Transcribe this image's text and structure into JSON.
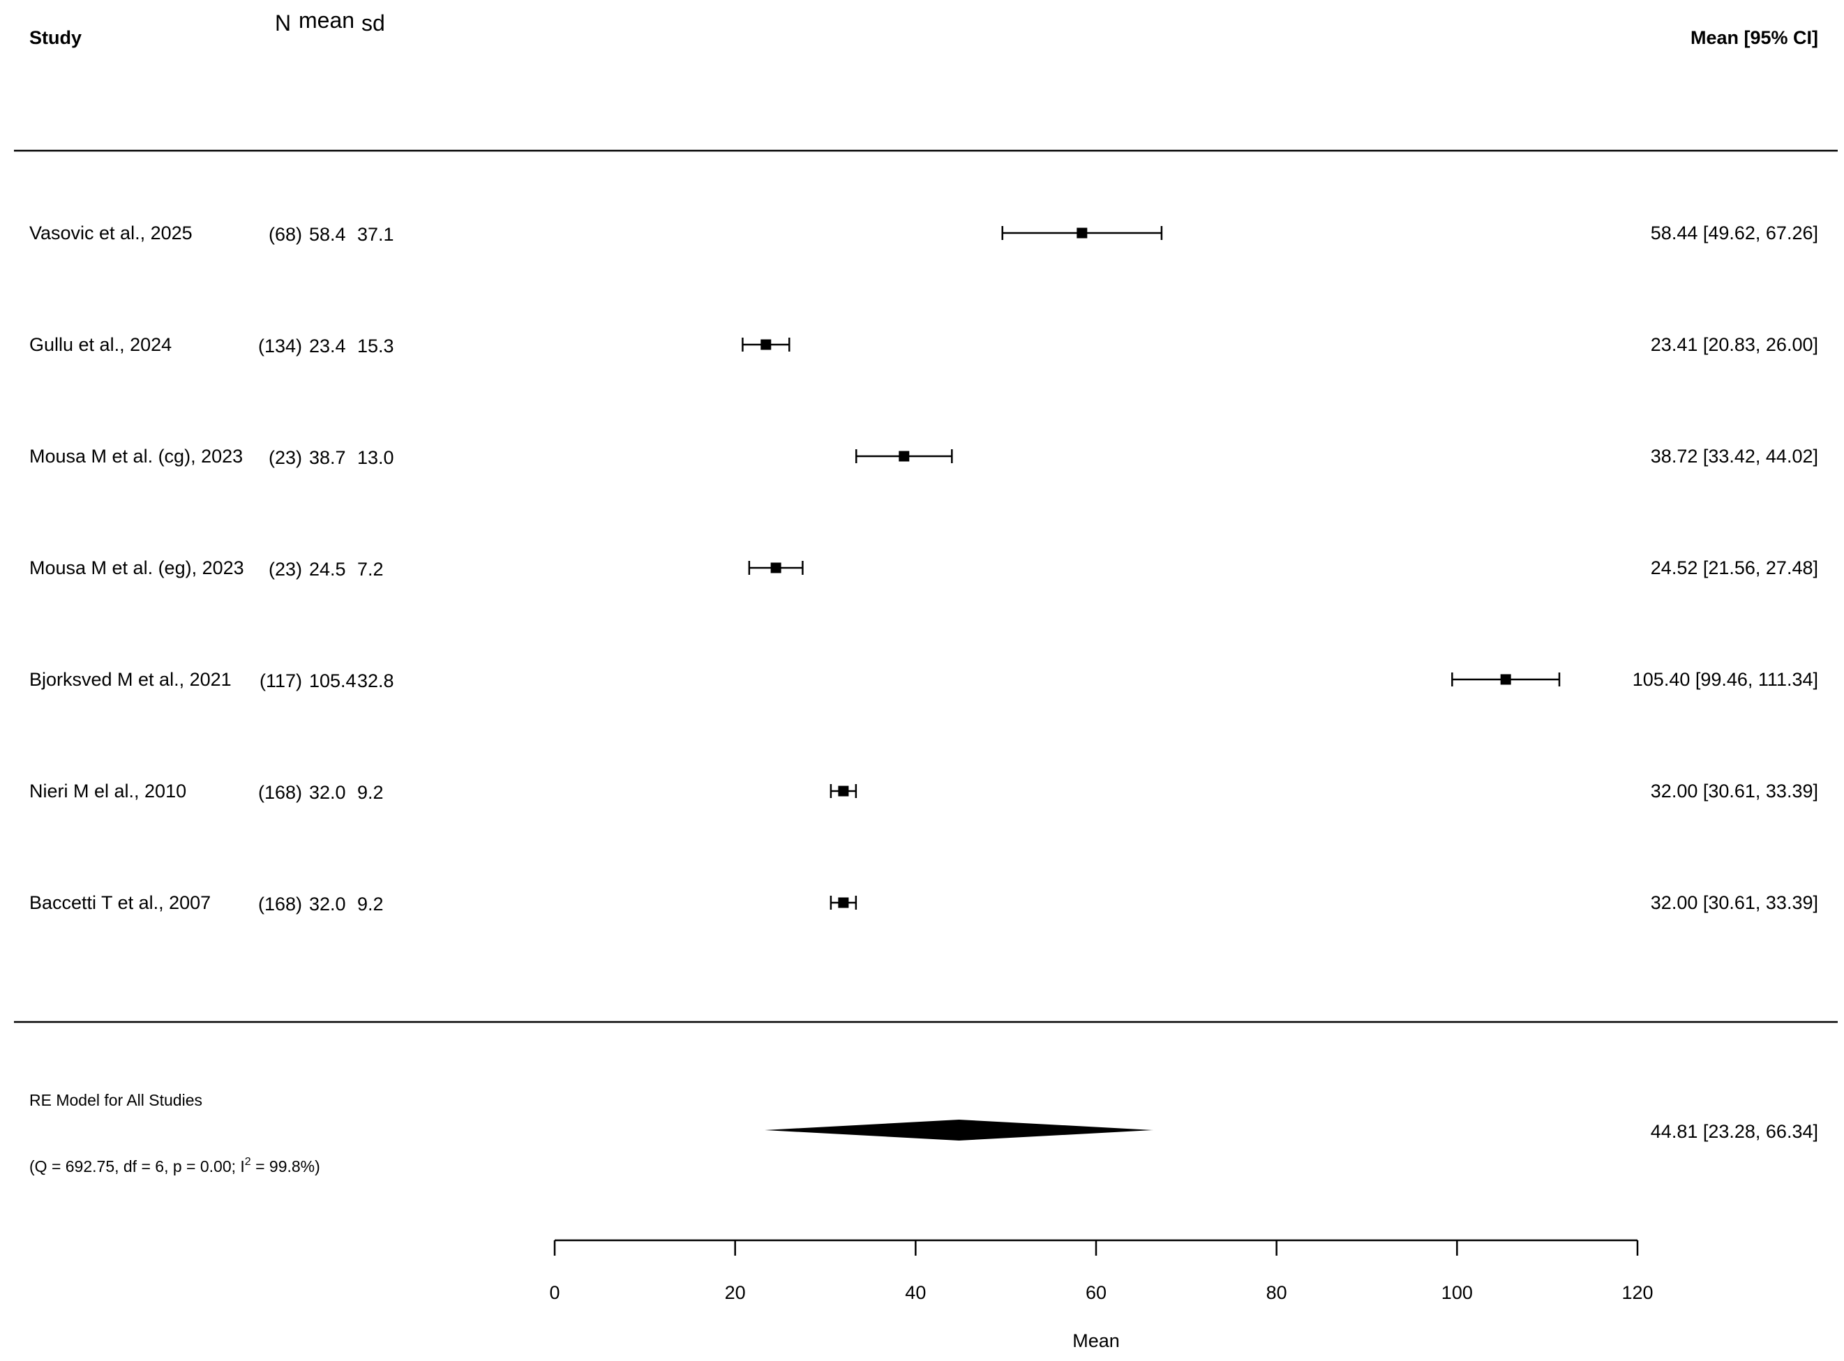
{
  "chart_data": {
    "type": "forest",
    "headers": {
      "study": "Study",
      "n": "N",
      "mean": "mean",
      "sd": "sd",
      "estimate": "Mean [95% CI]"
    },
    "xlabel": "Mean",
    "xlim": [
      0,
      120
    ],
    "xticks": [
      0,
      20,
      40,
      60,
      80,
      100,
      120
    ],
    "xtick_labels": [
      "0",
      "20",
      "40",
      "60",
      "80",
      "100",
      "120"
    ],
    "studies": [
      {
        "label": "Vasovic et al., 2025",
        "n": "(68)",
        "mean_str": "58.4",
        "sd_str": "37.1",
        "estimate": 58.44,
        "lower": 49.62,
        "upper": 67.26,
        "ci_text": "58.44 [49.62,  67.26]"
      },
      {
        "label": "Gullu et al., 2024",
        "n": "(134)",
        "mean_str": "23.4",
        "sd_str": "15.3",
        "estimate": 23.41,
        "lower": 20.83,
        "upper": 26.0,
        "ci_text": "23.41 [20.83,  26.00]"
      },
      {
        "label": "Mousa M et al. (cg), 2023",
        "n": "(23)",
        "mean_str": "38.7",
        "sd_str": "13.0",
        "estimate": 38.72,
        "lower": 33.42,
        "upper": 44.02,
        "ci_text": "38.72 [33.42,  44.02]"
      },
      {
        "label": "Mousa M et al. (eg), 2023",
        "n": "(23)",
        "mean_str": "24.5",
        "sd_str": "7.2",
        "estimate": 24.52,
        "lower": 21.56,
        "upper": 27.48,
        "ci_text": "24.52 [21.56,  27.48]"
      },
      {
        "label": "Bjorksved M et al., 2021",
        "n": "(117)",
        "mean_str": "105.4",
        "sd_str": "32.8",
        "estimate": 105.4,
        "lower": 99.46,
        "upper": 111.34,
        "ci_text": "105.40 [99.46, 111.34]"
      },
      {
        "label": "Nieri M el al., 2010",
        "n": "(168)",
        "mean_str": "32.0",
        "sd_str": "9.2",
        "estimate": 32.0,
        "lower": 30.61,
        "upper": 33.39,
        "ci_text": "32.00 [30.61,  33.39]"
      },
      {
        "label": "Baccetti T et al., 2007",
        "n": "(168)",
        "mean_str": "32.0",
        "sd_str": "9.2",
        "estimate": 32.0,
        "lower": 30.61,
        "upper": 33.39,
        "ci_text": "32.00 [30.61,  33.39]"
      }
    ],
    "summary": {
      "label": "RE Model for All Studies",
      "stats_prefix": "(Q = 692.75, df = 6, p = 0.00; I",
      "stats_sup": "2",
      "stats_suffix": " = 99.8%)",
      "estimate": 44.81,
      "lower": 23.28,
      "upper": 66.34,
      "ci_text": "44.81 [23.28,  66.34]"
    }
  }
}
